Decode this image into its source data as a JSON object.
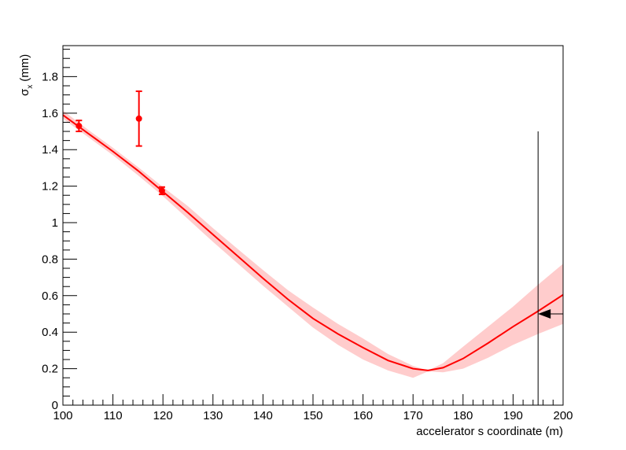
{
  "chart_data": {
    "type": "line",
    "title": "",
    "xlabel": "accelerator s coordinate (m)",
    "ylabel": {
      "symbol": "σ",
      "subscript": "x",
      "unit": "(mm)"
    },
    "xlim": [
      100,
      200
    ],
    "ylim": [
      0,
      1.97
    ],
    "x_ticks": [
      100,
      110,
      120,
      130,
      140,
      150,
      160,
      170,
      180,
      190,
      200
    ],
    "x_tick_labels": [
      "100",
      "110",
      "120",
      "130",
      "140",
      "150",
      "160",
      "170",
      "180",
      "190",
      "200"
    ],
    "y_ticks": [
      0,
      0.2,
      0.4,
      0.6,
      0.8,
      1,
      1.2,
      1.4,
      1.6,
      1.8
    ],
    "y_tick_labels": [
      "0",
      "0.2",
      "0.4",
      "0.6",
      "0.8",
      "1",
      "1.2",
      "1.4",
      "1.6",
      "1.8"
    ],
    "grid": false,
    "colors": {
      "fit": "#ff0000",
      "band": "#ffcccc",
      "marker": "#000000"
    },
    "fit_curve": {
      "x": [
        100,
        105,
        110,
        115,
        120,
        125,
        130,
        135,
        140,
        145,
        150,
        155,
        160,
        165,
        170,
        173,
        176,
        180,
        185,
        190,
        195,
        200
      ],
      "y": [
        1.59,
        1.49,
        1.39,
        1.285,
        1.17,
        1.055,
        0.935,
        0.815,
        0.695,
        0.58,
        0.475,
        0.39,
        0.315,
        0.245,
        0.2,
        0.19,
        0.205,
        0.255,
        0.34,
        0.43,
        0.515,
        0.605
      ]
    },
    "error_band": {
      "x": [
        100,
        105,
        110,
        115,
        120,
        125,
        130,
        135,
        140,
        145,
        150,
        155,
        160,
        165,
        170,
        173,
        176,
        180,
        185,
        190,
        195,
        200
      ],
      "upper": [
        1.615,
        1.51,
        1.41,
        1.305,
        1.195,
        1.09,
        0.97,
        0.855,
        0.74,
        0.63,
        0.535,
        0.445,
        0.365,
        0.28,
        0.215,
        0.19,
        0.23,
        0.32,
        0.43,
        0.54,
        0.66,
        0.775
      ],
      "lower": [
        1.57,
        1.47,
        1.37,
        1.26,
        1.145,
        1.02,
        0.895,
        0.775,
        0.655,
        0.54,
        0.425,
        0.33,
        0.25,
        0.19,
        0.15,
        0.185,
        0.18,
        0.2,
        0.26,
        0.33,
        0.39,
        0.445
      ]
    },
    "measurements": [
      {
        "x": 103.2,
        "y": 1.53,
        "yerr": 0.03
      },
      {
        "x": 115.2,
        "y": 1.57,
        "yerr": 0.15
      },
      {
        "x": 119.8,
        "y": 1.175,
        "yerr": 0.02
      }
    ],
    "marker_line": {
      "x": 195,
      "y_top": 1.5
    },
    "arrow": {
      "x_tip": 195,
      "x_tail": 200,
      "y": 0.5
    }
  }
}
